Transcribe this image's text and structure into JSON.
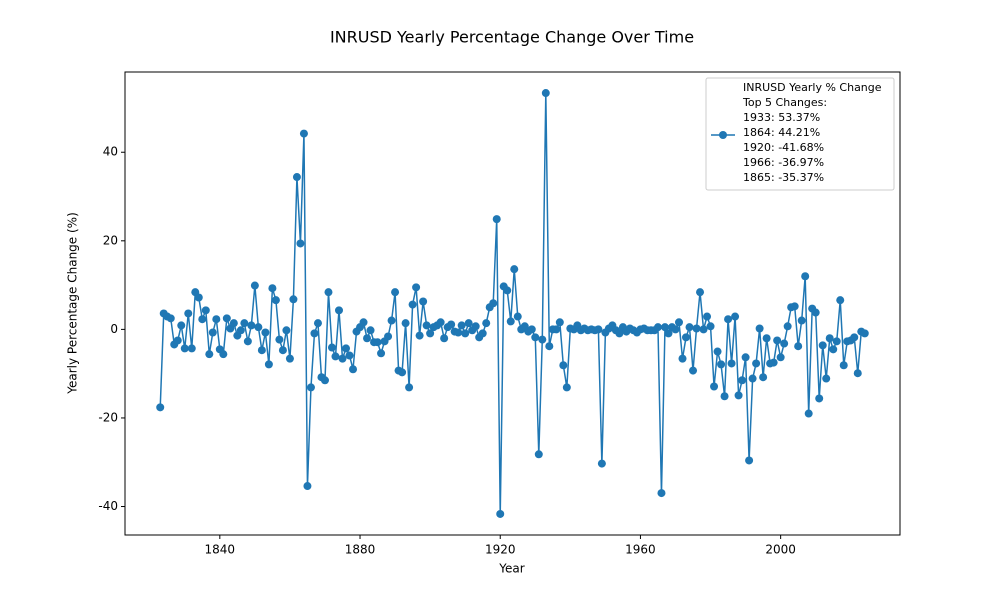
{
  "chart_data": {
    "type": "line",
    "title": "INRUSD Yearly Percentage Change Over Time",
    "x_label": "Year",
    "y_label": "Yearly Percentage Change (%)",
    "x": [
      1823,
      1824,
      1825,
      1826,
      1827,
      1828,
      1829,
      1830,
      1831,
      1832,
      1833,
      1834,
      1835,
      1836,
      1837,
      1838,
      1839,
      1840,
      1841,
      1842,
      1843,
      1844,
      1845,
      1846,
      1847,
      1848,
      1849,
      1850,
      1851,
      1852,
      1853,
      1854,
      1855,
      1856,
      1857,
      1858,
      1859,
      1860,
      1861,
      1862,
      1863,
      1864,
      1865,
      1866,
      1867,
      1868,
      1869,
      1870,
      1871,
      1872,
      1873,
      1874,
      1875,
      1876,
      1877,
      1878,
      1879,
      1880,
      1881,
      1882,
      1883,
      1884,
      1885,
      1886,
      1887,
      1888,
      1889,
      1890,
      1891,
      1892,
      1893,
      1894,
      1895,
      1896,
      1897,
      1898,
      1899,
      1900,
      1901,
      1902,
      1903,
      1904,
      1905,
      1906,
      1907,
      1908,
      1909,
      1910,
      1911,
      1912,
      1913,
      1914,
      1915,
      1916,
      1917,
      1918,
      1919,
      1920,
      1921,
      1922,
      1923,
      1924,
      1925,
      1926,
      1927,
      1928,
      1929,
      1930,
      1931,
      1932,
      1933,
      1934,
      1935,
      1936,
      1937,
      1938,
      1939,
      1940,
      1941,
      1942,
      1943,
      1944,
      1945,
      1946,
      1947,
      1948,
      1949,
      1950,
      1951,
      1952,
      1953,
      1954,
      1955,
      1956,
      1957,
      1958,
      1959,
      1960,
      1961,
      1962,
      1963,
      1964,
      1965,
      1966,
      1967,
      1968,
      1969,
      1970,
      1971,
      1972,
      1973,
      1974,
      1975,
      1976,
      1977,
      1978,
      1979,
      1980,
      1981,
      1982,
      1983,
      1984,
      1985,
      1986,
      1987,
      1988,
      1989,
      1990,
      1991,
      1992,
      1993,
      1994,
      1995,
      1996,
      1997,
      1998,
      1999,
      2000,
      2001,
      2002,
      2003,
      2004,
      2005,
      2006,
      2007,
      2008,
      2009,
      2010,
      2011,
      2012,
      2013,
      2014,
      2015,
      2016,
      2017,
      2018,
      2019,
      2020,
      2021,
      2022,
      2023,
      2024
    ],
    "series": [
      {
        "name": "INRUSD Yearly % Change\nTop 5 Changes:\n1933: 53.37%\n1864: 44.21%\n1920: -41.68%\n1966: -36.97%\n1865: -35.37%",
        "color": "#1f77b4",
        "values": [
          -17.6,
          3.6,
          2.9,
          2.5,
          -3.4,
          -2.5,
          0.9,
          -4.3,
          3.6,
          -4.3,
          8.4,
          7.2,
          2.3,
          4.3,
          -5.6,
          -0.7,
          2.3,
          -4.5,
          -5.6,
          2.5,
          0.2,
          1.4,
          -1.4,
          -0.2,
          1.4,
          -2.7,
          0.9,
          9.9,
          0.5,
          -4.7,
          -0.7,
          -7.9,
          9.3,
          6.6,
          -2.3,
          -4.7,
          -0.2,
          -6.6,
          6.8,
          34.4,
          19.4,
          44.21,
          -35.37,
          -13.1,
          -0.9,
          1.4,
          -10.8,
          -11.5,
          8.4,
          -4.1,
          -6.1,
          4.3,
          -6.6,
          -4.3,
          -5.9,
          -9.0,
          -0.5,
          0.5,
          1.6,
          -2.0,
          -0.2,
          -2.9,
          -2.9,
          -5.4,
          -2.7,
          -1.6,
          2.0,
          8.4,
          -9.3,
          -9.7,
          1.4,
          -13.1,
          5.6,
          9.5,
          -1.4,
          6.3,
          0.9,
          -0.9,
          0.5,
          0.9,
          1.6,
          -2.0,
          0.5,
          1.1,
          -0.5,
          -0.7,
          0.9,
          -0.9,
          1.4,
          -0.2,
          0.7,
          -1.8,
          -0.9,
          1.4,
          5.0,
          5.9,
          24.9,
          -41.68,
          9.7,
          8.8,
          1.8,
          13.6,
          2.9,
          0.0,
          0.7,
          -0.5,
          0.0,
          -1.8,
          -28.2,
          -2.3,
          53.37,
          -3.8,
          0.0,
          0.0,
          1.6,
          -8.1,
          -13.1,
          0.2,
          0,
          0.9,
          -0.2,
          0.2,
          -0.2,
          0,
          -0.2,
          0,
          -30.3,
          -0.7,
          0.2,
          0.9,
          -0.2,
          -0.9,
          0.5,
          -0.5,
          0.2,
          -0.2,
          -0.7,
          0,
          0.2,
          -0.2,
          -0.2,
          -0.2,
          0.5,
          -36.97,
          0.5,
          -0.9,
          0.5,
          0,
          1.6,
          -6.6,
          -1.8,
          0.5,
          -9.3,
          0.2,
          8.4,
          0,
          2.9,
          0.7,
          -12.9,
          -5.0,
          -7.9,
          -15.1,
          2.3,
          -7.7,
          2.9,
          -14.9,
          -11.5,
          -6.3,
          -29.6,
          -11.1,
          -7.7,
          0.2,
          -10.8,
          -2.0,
          -7.7,
          -7.5,
          -2.5,
          -6.3,
          -3.2,
          0.7,
          5.0,
          5.2,
          -3.8,
          2.0,
          12.0,
          -19.0,
          4.7,
          3.8,
          -15.6,
          -3.6,
          -11.1,
          -2.0,
          -4.5,
          -2.7,
          6.6,
          -8.1,
          -2.7,
          -2.5,
          -1.8,
          -9.9,
          -0.5,
          -0.9
        ]
      }
    ],
    "xlim": [
      1812.95,
      2034.05
    ],
    "xticks": [
      1840,
      1880,
      1920,
      1960,
      2000
    ],
    "ylim": [
      -46.43,
      58.12
    ],
    "yticks": [
      -40,
      -20,
      0,
      20,
      40
    ],
    "grid": false,
    "legend": "upper right"
  }
}
